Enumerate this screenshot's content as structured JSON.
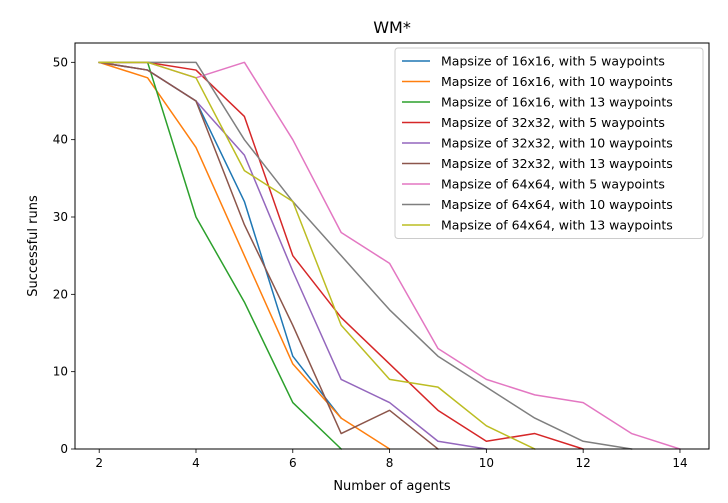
{
  "chart_data": {
    "type": "line",
    "title": "WM*",
    "xlabel": "Number of agents",
    "ylabel": "Successful runs",
    "xlim": [
      1.5,
      14.6
    ],
    "ylim": [
      0,
      52.5
    ],
    "xticks": [
      2,
      4,
      6,
      8,
      10,
      12,
      14
    ],
    "yticks": [
      0,
      10,
      20,
      30,
      40,
      50
    ],
    "grid": false,
    "legend_position": "upper-right",
    "series": [
      {
        "name": "Mapsize of 16x16, with 5 waypoints",
        "color": "#1f77b4",
        "x": [
          2,
          3,
          4,
          5,
          6,
          7
        ],
        "y": [
          50,
          49,
          45,
          32,
          12,
          4
        ]
      },
      {
        "name": "Mapsize of 16x16, with 10 waypoints",
        "color": "#ff7f0e",
        "x": [
          2,
          3,
          4,
          5,
          6,
          7,
          8
        ],
        "y": [
          50,
          48,
          39,
          25,
          11,
          4,
          0
        ]
      },
      {
        "name": "Mapsize of 16x16, with 13 waypoints",
        "color": "#2ca02c",
        "x": [
          2,
          3,
          4,
          5,
          6,
          7
        ],
        "y": [
          50,
          50,
          30,
          19,
          6,
          0
        ]
      },
      {
        "name": "Mapsize of 32x32, with 5 waypoints",
        "color": "#d62728",
        "x": [
          2,
          3,
          4,
          5,
          6,
          7,
          8,
          9,
          10,
          11,
          12
        ],
        "y": [
          50,
          50,
          49,
          43,
          25,
          17,
          11,
          5,
          1,
          2,
          0
        ]
      },
      {
        "name": "Mapsize of 32x32, with 10 waypoints",
        "color": "#9467bd",
        "x": [
          2,
          3,
          4,
          5,
          6,
          7,
          8,
          9,
          10
        ],
        "y": [
          50,
          49,
          45,
          38,
          23,
          9,
          6,
          1,
          0
        ]
      },
      {
        "name": "Mapsize of 32x32, with 13 waypoints",
        "color": "#8c564b",
        "x": [
          2,
          3,
          4,
          5,
          6,
          7,
          8,
          9
        ],
        "y": [
          50,
          49,
          45,
          29,
          16,
          2,
          5,
          0
        ]
      },
      {
        "name": "Mapsize of 64x64, with 5 waypoints",
        "color": "#e377c2",
        "x": [
          2,
          3,
          4,
          5,
          6,
          7,
          8,
          9,
          10,
          11,
          12,
          13,
          14
        ],
        "y": [
          50,
          50,
          48,
          50,
          40,
          28,
          24,
          13,
          9,
          7,
          6,
          2,
          0
        ]
      },
      {
        "name": "Mapsize of 64x64, with 10 waypoints",
        "color": "#7f7f7f",
        "x": [
          2,
          3,
          4,
          5,
          6,
          7,
          8,
          9,
          10,
          11,
          12,
          13
        ],
        "y": [
          50,
          50,
          50,
          40,
          32,
          25,
          18,
          12,
          8,
          4,
          1,
          0
        ]
      },
      {
        "name": "Mapsize of 64x64, with 13 waypoints",
        "color": "#bcbd22",
        "x": [
          2,
          3,
          4,
          5,
          6,
          7,
          8,
          9,
          10,
          11
        ],
        "y": [
          50,
          50,
          48,
          36,
          32,
          16,
          9,
          8,
          3,
          0
        ]
      }
    ]
  }
}
